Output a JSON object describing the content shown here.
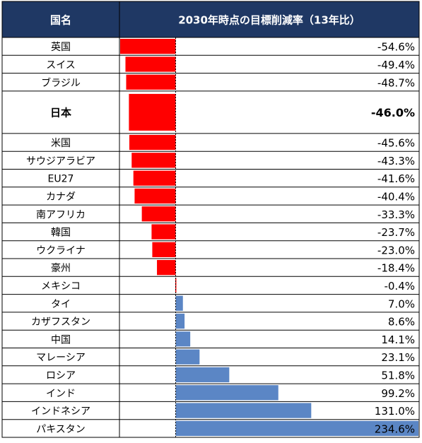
{
  "header": {
    "country_col": "国名",
    "value_col": "2030年時点の目標削減率（13年比）"
  },
  "colors": {
    "header_bg": "#1F3864",
    "header_text": "#ffffff",
    "negative_bar": "#FF0000",
    "positive_bar": "#5B86C5",
    "grid": "#000000"
  },
  "chart_data": {
    "type": "bar",
    "orientation": "horizontal",
    "title": "",
    "categories": [
      "英国",
      "スイス",
      "ブラジル",
      "日本",
      "米国",
      "サウジアラビア",
      "EU27",
      "カナダ",
      "南アフリカ",
      "韓国",
      "ウクライナ",
      "豪州",
      "メキシコ",
      "タイ",
      "カザフスタン",
      "中国",
      "マレーシア",
      "ロシア",
      "インド",
      "インドネシア",
      "パキスタン"
    ],
    "values": [
      -54.6,
      -49.4,
      -48.7,
      -46.0,
      -45.6,
      -43.3,
      -41.6,
      -40.4,
      -33.3,
      -23.7,
      -23.0,
      -18.4,
      -0.4,
      7.0,
      8.6,
      14.1,
      23.1,
      51.8,
      99.2,
      131.0,
      234.6
    ],
    "value_labels": [
      "-54.6%",
      "-49.4%",
      "-48.7%",
      "-46.0%",
      "-45.6%",
      "-43.3%",
      "-41.6%",
      "-40.4%",
      "-33.3%",
      "-23.7%",
      "-23.0%",
      "-18.4%",
      "-0.4%",
      "7.0%",
      "8.6%",
      "14.1%",
      "23.1%",
      "51.8%",
      "99.2%",
      "131.0%",
      "234.6%"
    ],
    "highlight": "日本",
    "xlim": [
      -54.6,
      234.6
    ]
  }
}
